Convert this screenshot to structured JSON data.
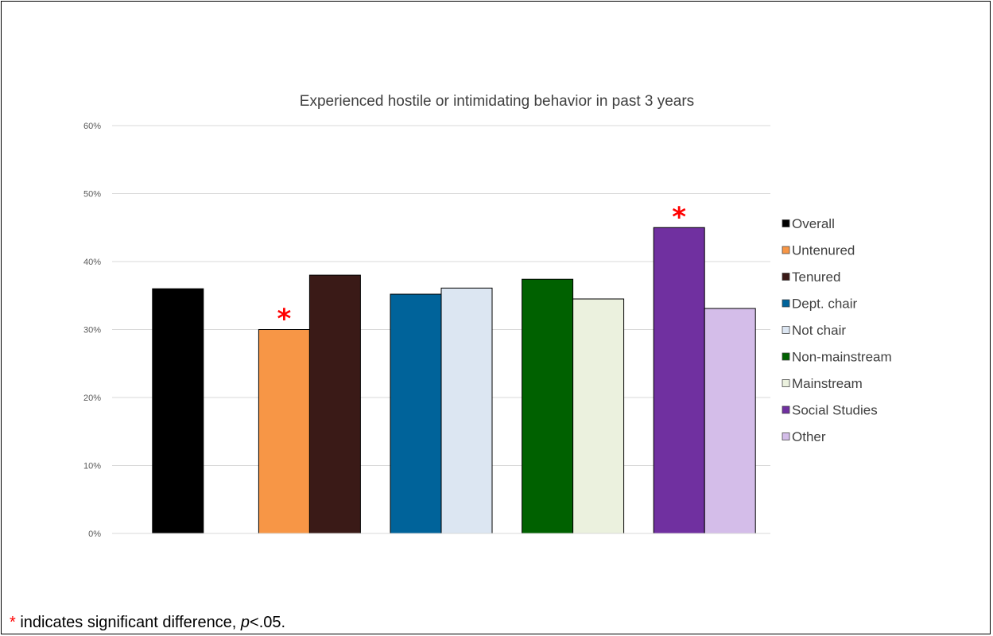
{
  "chart_data": {
    "type": "bar",
    "title": "Experienced hostile or intimidating behavior in past 3 years",
    "xlabel": "",
    "ylabel": "",
    "ylim": [
      0,
      60
    ],
    "yticks": [
      "0%",
      "10%",
      "20%",
      "30%",
      "40%",
      "50%",
      "60%"
    ],
    "grid": true,
    "legend_position": "right",
    "groups": [
      {
        "bars": [
          {
            "name": "Overall",
            "value": 36,
            "color": "#000000"
          }
        ]
      },
      {
        "bars": [
          {
            "name": "Untenured",
            "value": 30,
            "color": "#f79646",
            "significant": true
          },
          {
            "name": "Tenured",
            "value": 38,
            "color": "#3a1a17"
          }
        ]
      },
      {
        "bars": [
          {
            "name": "Dept. chair",
            "value": 35.2,
            "color": "#00639a"
          },
          {
            "name": "Not chair",
            "value": 36.1,
            "color": "#dce6f2"
          }
        ]
      },
      {
        "bars": [
          {
            "name": "Non-mainstream",
            "value": 37.4,
            "color": "#006100"
          },
          {
            "name": "Mainstream",
            "value": 34.5,
            "color": "#ebf1de"
          }
        ]
      },
      {
        "bars": [
          {
            "name": "Social Studies",
            "value": 45,
            "color": "#7030a0",
            "significant": true
          },
          {
            "name": "Other",
            "value": 33.1,
            "color": "#d4bde9"
          }
        ]
      }
    ],
    "significance_marker": "*",
    "significance_color": "#ff0000"
  },
  "footnote": {
    "star": "*",
    "text_before": " indicates significant difference, ",
    "p": "p",
    "text_after": "<.05."
  }
}
